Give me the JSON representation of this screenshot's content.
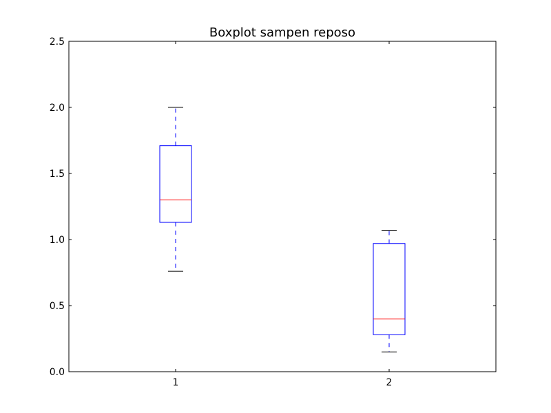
{
  "chart_data": {
    "type": "boxplot",
    "title": "Boxplot sampen reposo",
    "xlabel": "",
    "ylabel": "",
    "categories": [
      "1",
      "2"
    ],
    "ylim": [
      0.0,
      2.5
    ],
    "yticks": [
      "0.0",
      "0.5",
      "1.0",
      "1.5",
      "2.0",
      "2.5"
    ],
    "boxes": [
      {
        "category": "1",
        "whisker_low": 0.76,
        "q1": 1.13,
        "median": 1.3,
        "q3": 1.71,
        "whisker_high": 2.0
      },
      {
        "category": "2",
        "whisker_low": 0.15,
        "q1": 0.28,
        "median": 0.4,
        "q3": 0.97,
        "whisker_high": 1.07
      }
    ],
    "grid": false,
    "colors": {
      "box": "#0000ff",
      "median": "#ff0000",
      "cap": "#000000",
      "axes": "#000000"
    }
  }
}
